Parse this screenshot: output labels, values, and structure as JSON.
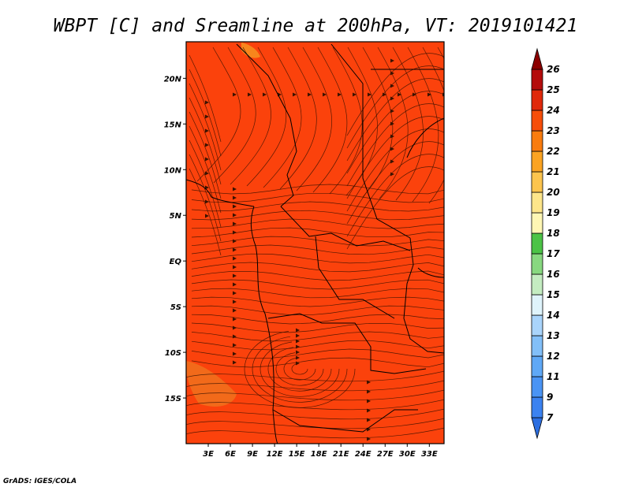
{
  "chart_data": {
    "type": "heatmap",
    "title": "WBPT [C] and Sreamline at 200hPa, VT: 2019101421",
    "field": "Wet-bulb potential temperature (C) with streamlines at 200hPa",
    "x_axis": {
      "label": "",
      "range": [
        0,
        35
      ],
      "ticks": [
        {
          "value": 3,
          "label": "3E"
        },
        {
          "value": 6,
          "label": "6E"
        },
        {
          "value": 9,
          "label": "9E"
        },
        {
          "value": 12,
          "label": "12E"
        },
        {
          "value": 15,
          "label": "15E"
        },
        {
          "value": 18,
          "label": "18E"
        },
        {
          "value": 21,
          "label": "21E"
        },
        {
          "value": 24,
          "label": "24E"
        },
        {
          "value": 27,
          "label": "27E"
        },
        {
          "value": 30,
          "label": "30E"
        },
        {
          "value": 33,
          "label": "33E"
        }
      ]
    },
    "y_axis": {
      "label": "",
      "range": [
        -20,
        24
      ],
      "ticks": [
        {
          "value": 20,
          "label": "20N"
        },
        {
          "value": 15,
          "label": "15N"
        },
        {
          "value": 10,
          "label": "10N"
        },
        {
          "value": 5,
          "label": "5N"
        },
        {
          "value": 0,
          "label": "EQ"
        },
        {
          "value": -5,
          "label": "5S"
        },
        {
          "value": -10,
          "label": "10S"
        },
        {
          "value": -15,
          "label": "15S"
        }
      ]
    },
    "dominant_value_range": [
      23,
      24
    ],
    "colorbar": {
      "orientation": "vertical",
      "placement": "right",
      "levels": [
        7,
        9,
        11,
        12,
        13,
        14,
        15,
        16,
        17,
        18,
        19,
        20,
        21,
        22,
        23,
        24,
        25,
        26
      ],
      "colors": [
        "#2c6ee0",
        "#3b82f0",
        "#4a94f4",
        "#5fa8f6",
        "#82bff8",
        "#a9d4fb",
        "#dff3fb",
        "#c4ecc1",
        "#88d880",
        "#4cc347",
        "#fef6b4",
        "#fde58a",
        "#fcc44e",
        "#fba322",
        "#f97c0f",
        "#f64e0a",
        "#e0290b",
        "#b40c0c",
        "#8c0000"
      ]
    },
    "grid": false
  },
  "credit": "GrADS: IGES/COLA",
  "colors": {
    "field": "#fb420c",
    "field_warm_patch": "#f26a1a",
    "field_cool_patch": "#f7861c",
    "streamline": "#3a1200",
    "border": "#000000"
  }
}
